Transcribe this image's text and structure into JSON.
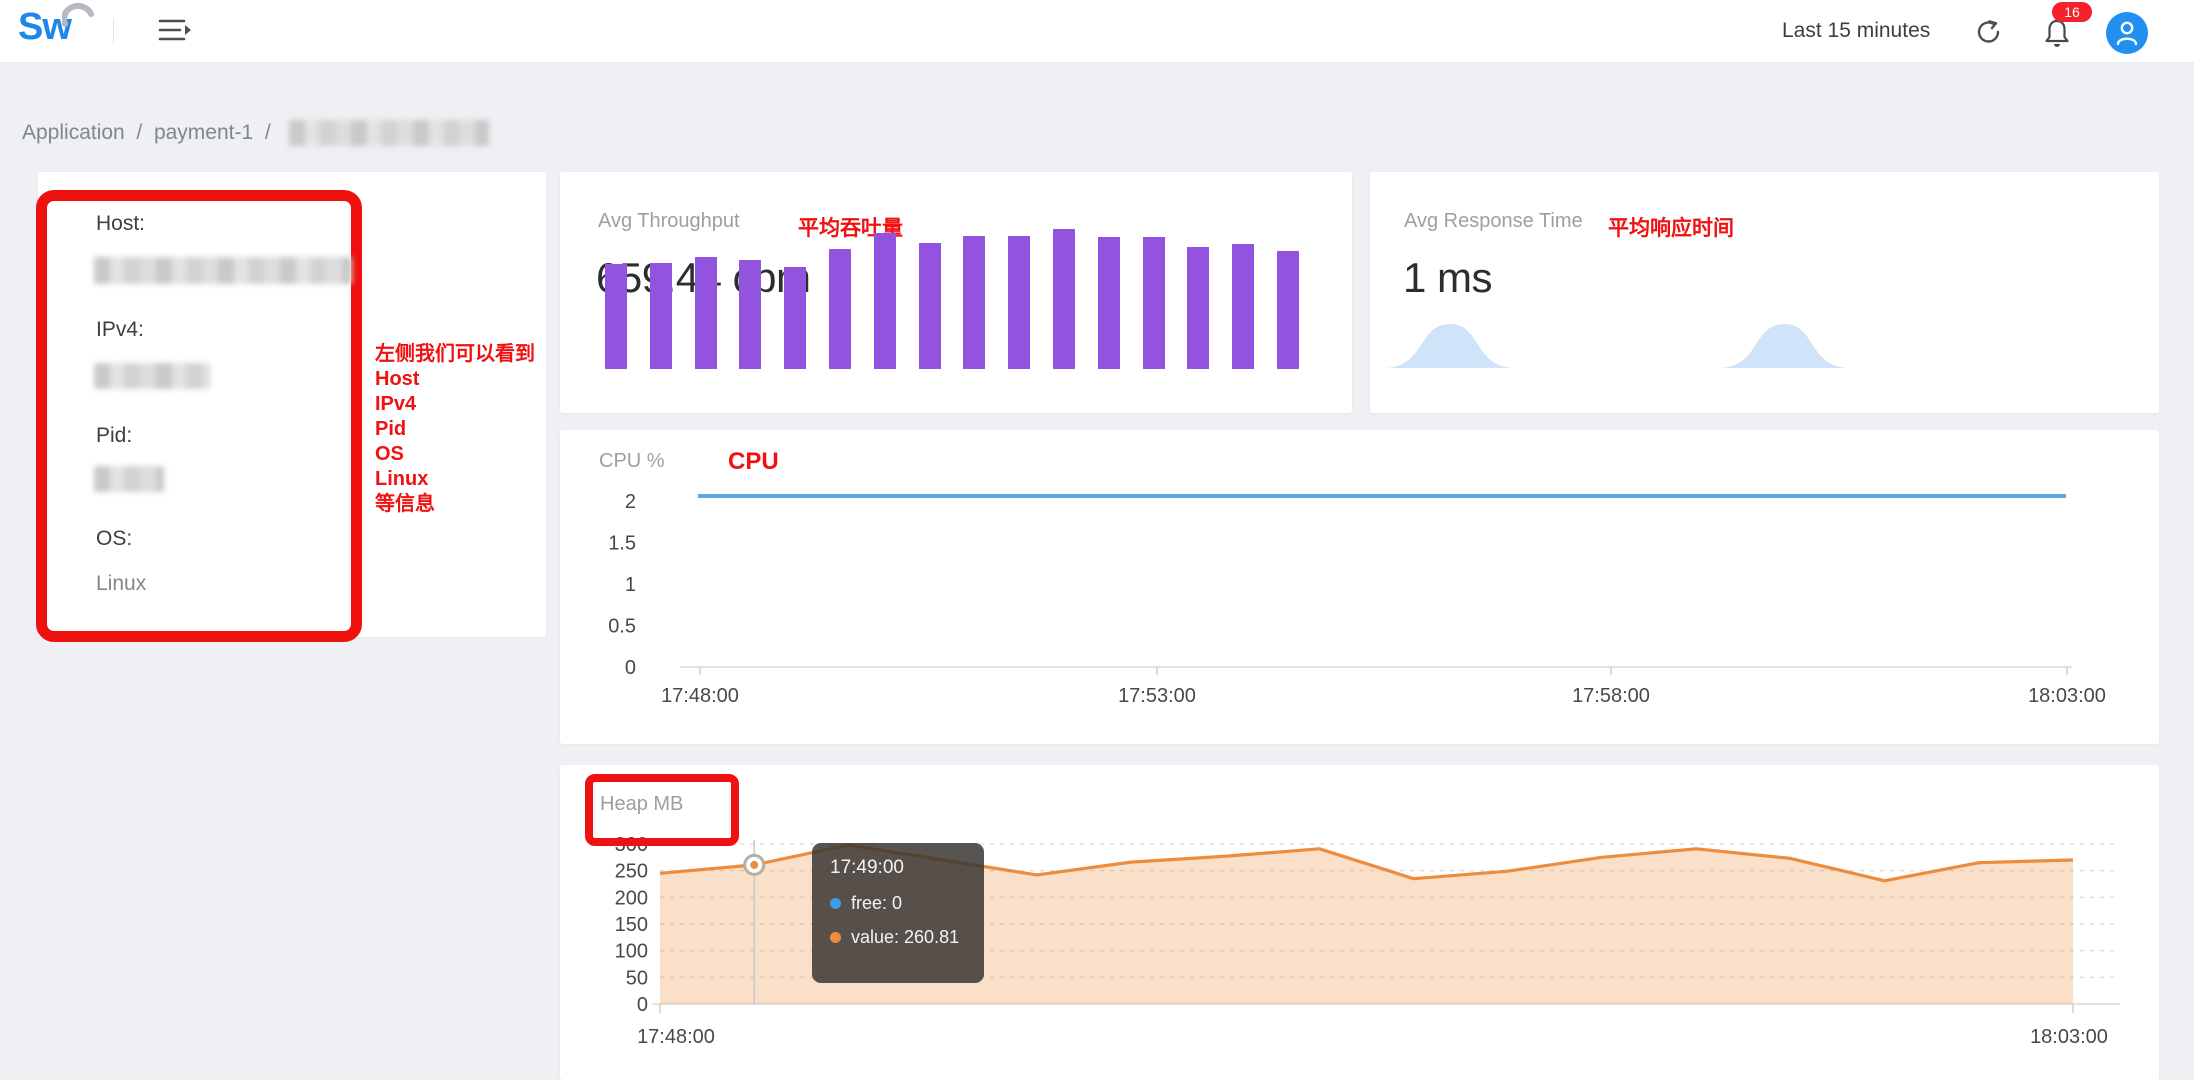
{
  "topbar": {
    "logo_text": "Sw",
    "time_range_label": "Last 15 minutes",
    "notification_badge": "16"
  },
  "breadcrumb": {
    "level1": "Application",
    "separator": "/",
    "level2": "payment-1"
  },
  "host_panel": {
    "host_label": "Host:",
    "ipv4_label": "IPv4:",
    "pid_label": "Pid:",
    "os_label": "OS:",
    "os_value": "Linux"
  },
  "annotations": {
    "color": "#f01212",
    "host_note_lines": "左侧我们可以看到\nHost\nIPv4\nPid\nOS\nLinux\n等信息",
    "throughput_note": "平均吞吐量",
    "response_note": "平均响应时间",
    "cpu_note": "CPU"
  },
  "cards": {
    "throughput": {
      "title": "Avg Throughput",
      "value": "659.44 cpm"
    },
    "response": {
      "title": "Avg Response Time",
      "value": "1 ms"
    }
  },
  "tooltip": {
    "time": "17:49:00",
    "rows": [
      {
        "text": "free: 0",
        "dot_color": "#3b9de8"
      },
      {
        "text": "value: 260.81",
        "dot_color": "#ee8d3d"
      }
    ]
  },
  "chart_data": [
    {
      "id": "throughput_sparkbar",
      "type": "bar",
      "title": "Avg Throughput per-minute sparkline (last 15 minutes)",
      "values_rel": [
        0.75,
        0.76,
        0.8,
        0.78,
        0.73,
        0.86,
        0.97,
        0.9,
        0.95,
        0.95,
        1.0,
        0.94,
        0.94,
        0.87,
        0.89,
        0.84
      ],
      "bar_color": "#9254de"
    },
    {
      "id": "response_sparkarea",
      "type": "area",
      "title": "Avg Response Time sparkline (two spikes)",
      "bumps": [
        {
          "x_frac": 0.101,
          "h_frac": 1.0
        },
        {
          "x_frac": 0.525,
          "h_frac": 1.0
        }
      ],
      "fill_color": "#cfe4f8"
    },
    {
      "id": "cpu_chart",
      "type": "line",
      "ylabel": "CPU %",
      "yticks": [
        2,
        1.5,
        1,
        0.5,
        0
      ],
      "ylim": [
        0,
        2
      ],
      "xticks": [
        "17:48:00",
        "17:53:00",
        "17:58:00",
        "18:03:00"
      ],
      "series": [
        {
          "name": "cpu",
          "color": "#59a6ef",
          "constant_value": 2
        }
      ],
      "grid": false,
      "legend": "none"
    },
    {
      "id": "heap_chart",
      "type": "area",
      "ylabel": "Heap MB",
      "yticks": [
        300,
        250,
        200,
        150,
        100,
        50,
        0
      ],
      "ylim": [
        0,
        300
      ],
      "xticks": [
        "17:48:00",
        "18:03:00"
      ],
      "x": [
        "17:48:00",
        "17:49:00",
        "17:50:00",
        "17:51:00",
        "17:52:00",
        "17:53:00",
        "17:54:00",
        "17:55:00",
        "17:56:00",
        "17:57:00",
        "17:58:00",
        "17:59:00",
        "18:00:00",
        "18:01:00",
        "18:02:00",
        "18:03:00"
      ],
      "series": [
        {
          "name": "value",
          "color": "#ec8c3c",
          "fill": "rgba(236,140,60,0.28)",
          "values": [
            245,
            260.81,
            298,
            270,
            242,
            266,
            277,
            291,
            235,
            249,
            275,
            291,
            273,
            231,
            265,
            270
          ]
        },
        {
          "name": "free",
          "color": "#3b9de8",
          "values": [
            0,
            0,
            0,
            0,
            0,
            0,
            0,
            0,
            0,
            0,
            0,
            0,
            0,
            0,
            0,
            0
          ]
        }
      ],
      "marker_index": 1,
      "grid": true,
      "legend": "none"
    }
  ]
}
